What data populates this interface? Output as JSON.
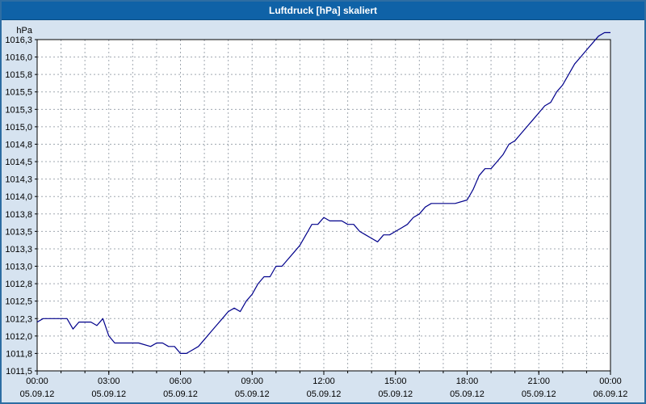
{
  "window": {
    "title": "Luftdruck [hPa] skaliert"
  },
  "chart_data": {
    "type": "line",
    "title": "Luftdruck [hPa] skaliert",
    "unit_label": "hPa",
    "ylabel": "hPa",
    "xlabel": "",
    "grid": true,
    "legend": "none",
    "line_color": "#00008b",
    "grid_color": "#a0a8b0",
    "plot_bg": "#ffffff",
    "ylim": [
      1011.5,
      1016.25
    ],
    "y_step": 0.25,
    "y_tick_labels": [
      "1016,3",
      "1016,0",
      "1015,8",
      "1015,5",
      "1015,3",
      "1015,0",
      "1014,8",
      "1014,5",
      "1014,3",
      "1014,0",
      "1013,8",
      "1013,5",
      "1013,3",
      "1013,0",
      "1012,8",
      "1012,5",
      "1012,3",
      "1012,0",
      "1011,8",
      "1011,5"
    ],
    "xlim_hours": [
      0,
      24
    ],
    "x_minor_every_hours": 1,
    "x_major_ticks": [
      {
        "hour": 0,
        "time": "00:00",
        "date": "05.09.12"
      },
      {
        "hour": 3,
        "time": "03:00",
        "date": "05.09.12"
      },
      {
        "hour": 6,
        "time": "06:00",
        "date": "05.09.12"
      },
      {
        "hour": 9,
        "time": "09:00",
        "date": "05.09.12"
      },
      {
        "hour": 12,
        "time": "12:00",
        "date": "05.09.12"
      },
      {
        "hour": 15,
        "time": "15:00",
        "date": "05.09.12"
      },
      {
        "hour": 18,
        "time": "18:00",
        "date": "05.09.12"
      },
      {
        "hour": 21,
        "time": "21:00",
        "date": "05.09.12"
      },
      {
        "hour": 24,
        "time": "00:00",
        "date": "06.09.12"
      }
    ],
    "series": [
      {
        "name": "Luftdruck",
        "x_hours": [
          0,
          0.25,
          0.75,
          1.25,
          1.5,
          1.75,
          2.0,
          2.25,
          2.5,
          2.75,
          3.0,
          3.25,
          3.75,
          4.25,
          4.75,
          5.0,
          5.25,
          5.5,
          5.75,
          6.0,
          6.25,
          6.5,
          6.75,
          7.0,
          7.25,
          7.5,
          7.75,
          8.0,
          8.25,
          8.5,
          8.75,
          9.0,
          9.25,
          9.5,
          9.75,
          10.0,
          10.25,
          10.5,
          10.75,
          11.0,
          11.25,
          11.5,
          11.75,
          12.0,
          12.25,
          12.5,
          12.75,
          13.0,
          13.25,
          13.5,
          13.75,
          14.0,
          14.25,
          14.5,
          14.75,
          15.0,
          15.25,
          15.5,
          15.75,
          16.0,
          16.25,
          16.5,
          17.0,
          17.5,
          18.0,
          18.25,
          18.5,
          18.75,
          19.0,
          19.25,
          19.5,
          19.75,
          20.0,
          20.25,
          20.5,
          20.75,
          21.0,
          21.25,
          21.5,
          21.75,
          22.0,
          22.25,
          22.5,
          22.75,
          23.0,
          23.25,
          23.5,
          23.75,
          24.0
        ],
        "values": [
          1012.2,
          1012.25,
          1012.25,
          1012.25,
          1012.1,
          1012.2,
          1012.2,
          1012.2,
          1012.15,
          1012.25,
          1012.0,
          1011.9,
          1011.9,
          1011.9,
          1011.85,
          1011.9,
          1011.9,
          1011.85,
          1011.85,
          1011.75,
          1011.75,
          1011.8,
          1011.85,
          1011.95,
          1012.05,
          1012.15,
          1012.25,
          1012.35,
          1012.4,
          1012.35,
          1012.5,
          1012.6,
          1012.75,
          1012.85,
          1012.85,
          1013.0,
          1013.0,
          1013.1,
          1013.2,
          1013.3,
          1013.45,
          1013.6,
          1013.6,
          1013.7,
          1013.65,
          1013.65,
          1013.65,
          1013.6,
          1013.6,
          1013.5,
          1013.45,
          1013.4,
          1013.35,
          1013.45,
          1013.45,
          1013.5,
          1013.55,
          1013.6,
          1013.7,
          1013.75,
          1013.85,
          1013.9,
          1013.9,
          1013.9,
          1013.95,
          1014.1,
          1014.3,
          1014.4,
          1014.4,
          1014.5,
          1014.6,
          1014.75,
          1014.8,
          1014.9,
          1015.0,
          1015.1,
          1015.2,
          1015.3,
          1015.35,
          1015.5,
          1015.6,
          1015.75,
          1015.9,
          1016.0,
          1016.1,
          1016.2,
          1016.3,
          1016.35,
          1016.35
        ]
      }
    ]
  }
}
